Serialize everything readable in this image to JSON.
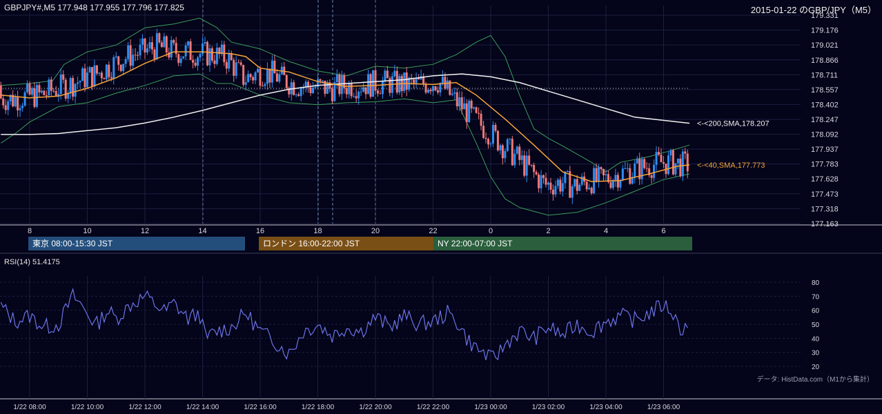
{
  "header": {
    "symbol_line": "GBPJPY#,M5 177.948 177.955 177.796 177.825",
    "chart_title": "2015-01-22 のGBP/JPY（M5）"
  },
  "colors": {
    "background": "#04041a",
    "grid": "#1c2140",
    "candle_up": "#2f8df0",
    "candle_down": "#f07878",
    "bollinger": "#3c9e5a",
    "sma40": "#f7a53a",
    "sma200": "#f2f2f2",
    "rsi": "#6c74e8"
  },
  "sessions": [
    {
      "label": "東京 08:00-15:30 JST",
      "color": "#234e7c"
    },
    {
      "label": "ロンドン 16:00-22:00 JST",
      "color": "#7a4f16"
    },
    {
      "label": "NY 22:00-07:00 JST",
      "color": "#2a5e3c"
    }
  ],
  "rsi": {
    "label": "RSI(14) 51.4175"
  },
  "source_note": "データ: HistData.com（M1から集計）",
  "chart_data": [
    {
      "type": "candlestick",
      "title": "2015-01-22 のGBP/JPY（M5）",
      "y_ticks": [
        "179.331",
        "179.176",
        "179.021",
        "178.866",
        "178.711",
        "178.557",
        "178.402",
        "178.247",
        "178.092",
        "177.937",
        "177.783",
        "177.628",
        "177.473",
        "177.318",
        "177.163"
      ],
      "ylim": [
        177.163,
        179.331
      ],
      "x_ticks": [
        "8",
        "10",
        "12",
        "14",
        "16",
        "18",
        "20",
        "22",
        "0",
        "2",
        "4",
        "6"
      ],
      "series": [
        {
          "name": "200,SMA",
          "last_value": 178.207,
          "annotation": "<-<200,SMA,178.207",
          "points": [
            [
              7.0,
              178.09
            ],
            [
              8.0,
              178.09
            ],
            [
              9.0,
              178.1
            ],
            [
              10.0,
              178.13
            ],
            [
              11.0,
              178.16
            ],
            [
              12.0,
              178.21
            ],
            [
              13.0,
              178.27
            ],
            [
              14.0,
              178.34
            ],
            [
              15.0,
              178.42
            ],
            [
              16.0,
              178.5
            ],
            [
              17.0,
              178.56
            ],
            [
              18.0,
              178.6
            ],
            [
              19.0,
              178.62
            ],
            [
              20.0,
              178.64
            ],
            [
              21.0,
              178.66
            ],
            [
              22.0,
              178.7
            ],
            [
              23.0,
              178.72
            ],
            [
              24.0,
              178.69
            ],
            [
              25.0,
              178.63
            ],
            [
              26.0,
              178.54
            ],
            [
              27.0,
              178.45
            ],
            [
              28.0,
              178.36
            ],
            [
              29.0,
              178.27
            ],
            [
              30.9,
              178.207
            ]
          ]
        },
        {
          "name": "40,SMA",
          "last_value": 177.773,
          "annotation": "<-<40,SMA,177.773",
          "points": [
            [
              7.0,
              178.5
            ],
            [
              8.0,
              178.47
            ],
            [
              9.0,
              178.49
            ],
            [
              10.0,
              178.57
            ],
            [
              11.0,
              178.68
            ],
            [
              12.0,
              178.83
            ],
            [
              13.0,
              178.95
            ],
            [
              14.0,
              178.95
            ],
            [
              15.0,
              178.93
            ],
            [
              15.5,
              178.9
            ],
            [
              16.0,
              178.78
            ],
            [
              17.0,
              178.74
            ],
            [
              18.0,
              178.64
            ],
            [
              19.0,
              178.59
            ],
            [
              20.0,
              178.6
            ],
            [
              21.0,
              178.62
            ],
            [
              22.0,
              178.61
            ],
            [
              22.8,
              178.63
            ],
            [
              23.5,
              178.5
            ],
            [
              24.5,
              178.25
            ],
            [
              25.5,
              177.98
            ],
            [
              26.5,
              177.7
            ],
            [
              27.5,
              177.6
            ],
            [
              28.5,
              177.61
            ],
            [
              29.5,
              177.68
            ],
            [
              30.5,
              177.76
            ],
            [
              30.9,
              177.773
            ]
          ]
        },
        {
          "name": "bollinger_upper",
          "points": [
            [
              7.0,
              178.6
            ],
            [
              8.0,
              178.62
            ],
            [
              8.8,
              178.65
            ],
            [
              9.2,
              178.82
            ],
            [
              10.0,
              178.95
            ],
            [
              11.0,
              179.02
            ],
            [
              12.0,
              179.2
            ],
            [
              13.0,
              179.24
            ],
            [
              13.9,
              179.3
            ],
            [
              14.5,
              179.2
            ],
            [
              15.0,
              179.05
            ],
            [
              16.0,
              178.98
            ],
            [
              17.0,
              178.85
            ],
            [
              18.0,
              178.75
            ],
            [
              19.0,
              178.7
            ],
            [
              20.0,
              178.8
            ],
            [
              21.0,
              178.78
            ],
            [
              22.0,
              178.82
            ],
            [
              22.8,
              178.92
            ],
            [
              23.5,
              179.05
            ],
            [
              24.0,
              179.12
            ],
            [
              24.5,
              178.9
            ],
            [
              25.0,
              178.5
            ],
            [
              25.5,
              178.15
            ],
            [
              26.0,
              178.05
            ],
            [
              26.5,
              177.97
            ],
            [
              27.5,
              177.8
            ],
            [
              28.0,
              177.7
            ],
            [
              28.5,
              177.8
            ],
            [
              29.5,
              177.86
            ],
            [
              30.0,
              177.9
            ],
            [
              30.9,
              177.98
            ]
          ]
        },
        {
          "name": "bollinger_lower",
          "points": [
            [
              7.0,
              178.0
            ],
            [
              7.5,
              178.1
            ],
            [
              8.0,
              178.22
            ],
            [
              9.0,
              178.38
            ],
            [
              10.0,
              178.42
            ],
            [
              11.0,
              178.52
            ],
            [
              12.0,
              178.6
            ],
            [
              13.0,
              178.7
            ],
            [
              13.9,
              178.72
            ],
            [
              14.5,
              178.62
            ],
            [
              15.0,
              178.62
            ],
            [
              16.0,
              178.5
            ],
            [
              17.0,
              178.42
            ],
            [
              18.0,
              178.4
            ],
            [
              19.0,
              178.42
            ],
            [
              20.0,
              178.43
            ],
            [
              21.0,
              178.46
            ],
            [
              22.0,
              178.42
            ],
            [
              22.8,
              178.45
            ],
            [
              23.5,
              178.0
            ],
            [
              24.0,
              177.65
            ],
            [
              24.5,
              177.42
            ],
            [
              25.0,
              177.33
            ],
            [
              26.0,
              177.25
            ],
            [
              27.0,
              177.28
            ],
            [
              28.0,
              177.38
            ],
            [
              29.0,
              177.5
            ],
            [
              30.0,
              177.62
            ],
            [
              30.9,
              177.68
            ]
          ]
        }
      ]
    },
    {
      "type": "line",
      "title": "RSI(14) 51.4175",
      "ylim": [
        20,
        80
      ],
      "y_ticks": [
        "80",
        "70",
        "60",
        "50",
        "40",
        "30",
        "20"
      ],
      "x_ticks": [
        "1/22 08:00",
        "1/22 10:00",
        "1/22 12:00",
        "1/22 14:00",
        "1/22 16:00",
        "1/22 18:00",
        "1/22 20:00",
        "1/22 22:00",
        "1/23 00:00",
        "1/23 02:00",
        "1/23 04:00",
        "1/23 06:00"
      ],
      "last_value": 51.4175,
      "anchors": [
        [
          7.0,
          63
        ],
        [
          7.5,
          52
        ],
        [
          8.0,
          56
        ],
        [
          8.5,
          48
        ],
        [
          9.0,
          50
        ],
        [
          9.3,
          62
        ],
        [
          9.5,
          70
        ],
        [
          9.7,
          66
        ],
        [
          10.0,
          58
        ],
        [
          10.3,
          49
        ],
        [
          10.7,
          60
        ],
        [
          11.0,
          54
        ],
        [
          11.5,
          64
        ],
        [
          12.0,
          70
        ],
        [
          12.3,
          65
        ],
        [
          12.7,
          59
        ],
        [
          13.0,
          65
        ],
        [
          13.5,
          54
        ],
        [
          13.9,
          58
        ],
        [
          14.1,
          40
        ],
        [
          14.5,
          45
        ],
        [
          15.0,
          48
        ],
        [
          15.5,
          58
        ],
        [
          16.0,
          45
        ],
        [
          16.5,
          38
        ],
        [
          17.0,
          29
        ],
        [
          17.5,
          45
        ],
        [
          18.0,
          50
        ],
        [
          18.5,
          42
        ],
        [
          19.0,
          48
        ],
        [
          19.5,
          45
        ],
        [
          20.0,
          55
        ],
        [
          20.5,
          48
        ],
        [
          21.0,
          56
        ],
        [
          21.5,
          50
        ],
        [
          22.0,
          52
        ],
        [
          22.5,
          58
        ],
        [
          22.9,
          50
        ],
        [
          23.2,
          39
        ],
        [
          23.5,
          33
        ],
        [
          23.8,
          29
        ],
        [
          24.0,
          25
        ],
        [
          24.3,
          30
        ],
        [
          24.6,
          38
        ],
        [
          25.0,
          45
        ],
        [
          25.5,
          40
        ],
        [
          26.0,
          48
        ],
        [
          26.5,
          42
        ],
        [
          27.0,
          50
        ],
        [
          27.5,
          45
        ],
        [
          28.0,
          52
        ],
        [
          28.5,
          56
        ],
        [
          29.0,
          53
        ],
        [
          29.5,
          58
        ],
        [
          30.0,
          64
        ],
        [
          30.3,
          59
        ],
        [
          30.6,
          46
        ],
        [
          30.9,
          51.4175
        ]
      ]
    }
  ]
}
